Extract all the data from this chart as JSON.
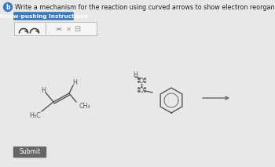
{
  "bg_color": "#e8e8e8",
  "title_text": "Write a mechanism for the reaction using curved arrows to show electron reorganization.",
  "title_fontsize": 5.8,
  "title_color": "#222222",
  "btn_label": "Arrow-pushing Instructions",
  "btn_color": "#3a7abf",
  "btn_text_color": "#ffffff",
  "btn_fontsize": 5.2,
  "submit_label": "Submit",
  "submit_bg": "#666666",
  "submit_text_color": "#ffffff",
  "submit_fontsize": 5.5,
  "arrow_color": "#666666",
  "molecule_color": "#555555",
  "toolbar_bg": "#f5f5f5",
  "toolbar_border": "#bbbbbb",
  "badge_color": "#3a7abf"
}
